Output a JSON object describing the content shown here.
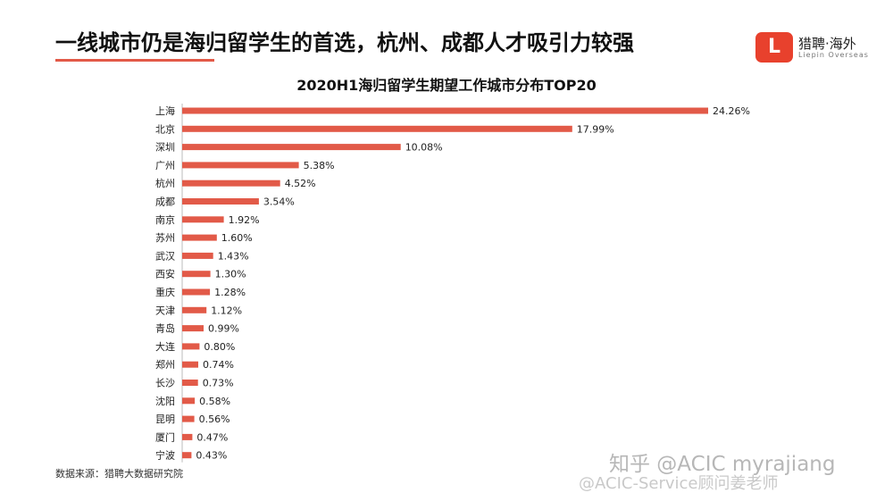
{
  "header": {
    "headline": "一线城市仍是海归留学生的首选，杭州、成都人才吸引力较强",
    "accent_color": "#e25a48"
  },
  "logo": {
    "icon": "L",
    "name": "猎聘·海外",
    "subtitle": "Liepin Overseas",
    "color": "#e8412d"
  },
  "chart_data": {
    "type": "bar",
    "orientation": "horizontal",
    "title": "2020H1海归留学生期望工作城市分布TOP20",
    "xlabel": "",
    "ylabel": "",
    "value_suffix": "%",
    "bar_color": "#e25a48",
    "grid": false,
    "xlim": [
      0,
      24.26
    ],
    "categories": [
      "上海",
      "北京",
      "深圳",
      "广州",
      "杭州",
      "成都",
      "南京",
      "苏州",
      "武汉",
      "西安",
      "重庆",
      "天津",
      "青岛",
      "大连",
      "郑州",
      "长沙",
      "沈阳",
      "昆明",
      "厦门",
      "宁波"
    ],
    "values": [
      24.26,
      17.99,
      10.08,
      5.38,
      4.52,
      3.54,
      1.92,
      1.6,
      1.43,
      1.3,
      1.28,
      1.12,
      0.99,
      0.8,
      0.74,
      0.73,
      0.58,
      0.56,
      0.47,
      0.43
    ],
    "value_labels": [
      "24.26%",
      "17.99%",
      "10.08%",
      "5.38%",
      "4.52%",
      "3.54%",
      "1.92%",
      "1.60%",
      "1.43%",
      "1.30%",
      "1.28%",
      "1.12%",
      "0.99%",
      "0.80%",
      "0.74%",
      "0.73%",
      "0.58%",
      "0.56%",
      "0.47%",
      "0.43%"
    ]
  },
  "footer": {
    "source": "数据来源：猎聘大数据研究院"
  },
  "watermark": {
    "line1": "知乎 @ACIC myrajiang",
    "line2": "@ACIC-Service顾问姜老师"
  }
}
